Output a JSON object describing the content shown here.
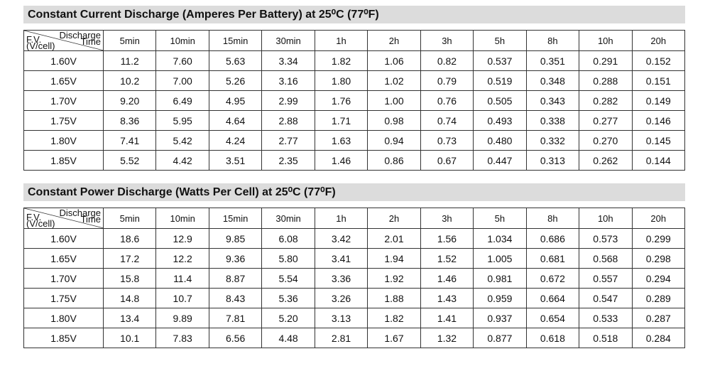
{
  "tables": [
    {
      "title": "Constant Current Discharge (Amperes Per Battery) at 25⁰C (77⁰F)",
      "corner_top": [
        "Discharge",
        "Time"
      ],
      "corner_bottom": [
        "F.V.",
        "(V/cell)"
      ],
      "columns": [
        "5min",
        "10min",
        "15min",
        "30min",
        "1h",
        "2h",
        "3h",
        "5h",
        "8h",
        "10h",
        "20h"
      ],
      "rows": [
        {
          "label": "1.60V",
          "values": [
            "11.2",
            "7.60",
            "5.63",
            "3.34",
            "1.82",
            "1.06",
            "0.82",
            "0.537",
            "0.351",
            "0.291",
            "0.152"
          ]
        },
        {
          "label": "1.65V",
          "values": [
            "10.2",
            "7.00",
            "5.26",
            "3.16",
            "1.80",
            "1.02",
            "0.79",
            "0.519",
            "0.348",
            "0.288",
            "0.151"
          ]
        },
        {
          "label": "1.70V",
          "values": [
            "9.20",
            "6.49",
            "4.95",
            "2.99",
            "1.76",
            "1.00",
            "0.76",
            "0.505",
            "0.343",
            "0.282",
            "0.149"
          ]
        },
        {
          "label": "1.75V",
          "values": [
            "8.36",
            "5.95",
            "4.64",
            "2.88",
            "1.71",
            "0.98",
            "0.74",
            "0.493",
            "0.338",
            "0.277",
            "0.146"
          ]
        },
        {
          "label": "1.80V",
          "values": [
            "7.41",
            "5.42",
            "4.24",
            "2.77",
            "1.63",
            "0.94",
            "0.73",
            "0.480",
            "0.332",
            "0.270",
            "0.145"
          ]
        },
        {
          "label": "1.85V",
          "values": [
            "5.52",
            "4.42",
            "3.51",
            "2.35",
            "1.46",
            "0.86",
            "0.67",
            "0.447",
            "0.313",
            "0.262",
            "0.144"
          ]
        }
      ]
    },
    {
      "title": "Constant Power Discharge (Watts Per Cell) at 25⁰C (77⁰F)",
      "corner_top": [
        "Discharge",
        "Time"
      ],
      "corner_bottom": [
        "F.V.",
        "(V/cell)"
      ],
      "columns": [
        "5min",
        "10min",
        "15min",
        "30min",
        "1h",
        "2h",
        "3h",
        "5h",
        "8h",
        "10h",
        "20h"
      ],
      "rows": [
        {
          "label": "1.60V",
          "values": [
            "18.6",
            "12.9",
            "9.85",
            "6.08",
            "3.42",
            "2.01",
            "1.56",
            "1.034",
            "0.686",
            "0.573",
            "0.299"
          ]
        },
        {
          "label": "1.65V",
          "values": [
            "17.2",
            "12.2",
            "9.36",
            "5.80",
            "3.41",
            "1.94",
            "1.52",
            "1.005",
            "0.681",
            "0.568",
            "0.298"
          ]
        },
        {
          "label": "1.70V",
          "values": [
            "15.8",
            "11.4",
            "8.87",
            "5.54",
            "3.36",
            "1.92",
            "1.46",
            "0.981",
            "0.672",
            "0.557",
            "0.294"
          ]
        },
        {
          "label": "1.75V",
          "values": [
            "14.8",
            "10.7",
            "8.43",
            "5.36",
            "3.26",
            "1.88",
            "1.43",
            "0.959",
            "0.664",
            "0.547",
            "0.289"
          ]
        },
        {
          "label": "1.80V",
          "values": [
            "13.4",
            "9.89",
            "7.81",
            "5.20",
            "3.13",
            "1.82",
            "1.41",
            "0.937",
            "0.654",
            "0.533",
            "0.287"
          ]
        },
        {
          "label": "1.85V",
          "values": [
            "10.1",
            "7.83",
            "6.56",
            "4.48",
            "2.81",
            "1.67",
            "1.32",
            "0.877",
            "0.618",
            "0.518",
            "0.284"
          ]
        }
      ]
    }
  ]
}
